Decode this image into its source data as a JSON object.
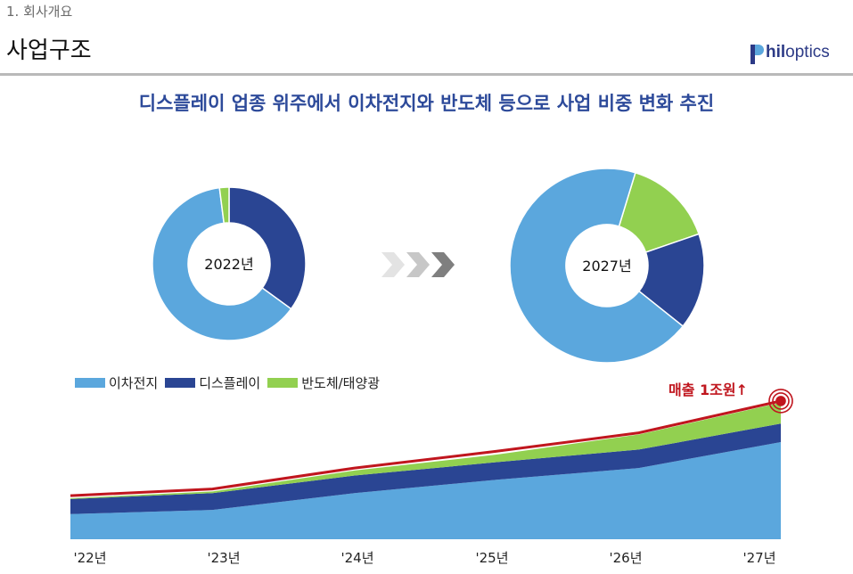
{
  "header": {
    "section": "1. 회사개요",
    "title": "사업구조",
    "logo_bold": "hil",
    "logo_rest": "optics"
  },
  "headline": "디스플레이 업종 위주에서 이차전지와 반도체 등으로 사업 비중 변화 추진",
  "colors": {
    "battery": "#5ba7dd",
    "display": "#2a4593",
    "semi": "#92d050",
    "total_line": "#c0161e",
    "arrow": [
      "#e3e3e3",
      "#c7c7c7",
      "#7f7f7f"
    ]
  },
  "chart_data": [
    {
      "type": "pie",
      "title": "2022년",
      "categories": [
        "이차전지",
        "디스플레이",
        "반도체/태양광"
      ],
      "values": [
        63,
        35,
        2
      ]
    },
    {
      "type": "pie",
      "title": "2027년",
      "categories": [
        "이차전지",
        "디스플레이",
        "반도체/태양광"
      ],
      "values": [
        69,
        16,
        15
      ]
    },
    {
      "type": "area",
      "stacked": true,
      "x": [
        "'22년",
        "'23년",
        "'24년",
        "'25년",
        "'26년",
        "'27년"
      ],
      "series": [
        {
          "name": "이차전지",
          "values": [
            30,
            35,
            55,
            71,
            85,
            116
          ]
        },
        {
          "name": "디스플레이",
          "values": [
            18,
            20,
            21,
            21,
            22,
            22
          ]
        },
        {
          "name": "반도체/태양광",
          "values": [
            1,
            2,
            6,
            9,
            18,
            25
          ]
        }
      ],
      "total_line": [
        52,
        60,
        85,
        105,
        127,
        165
      ],
      "annotation": "매출 1조원↑",
      "legend": "top-left"
    }
  ]
}
